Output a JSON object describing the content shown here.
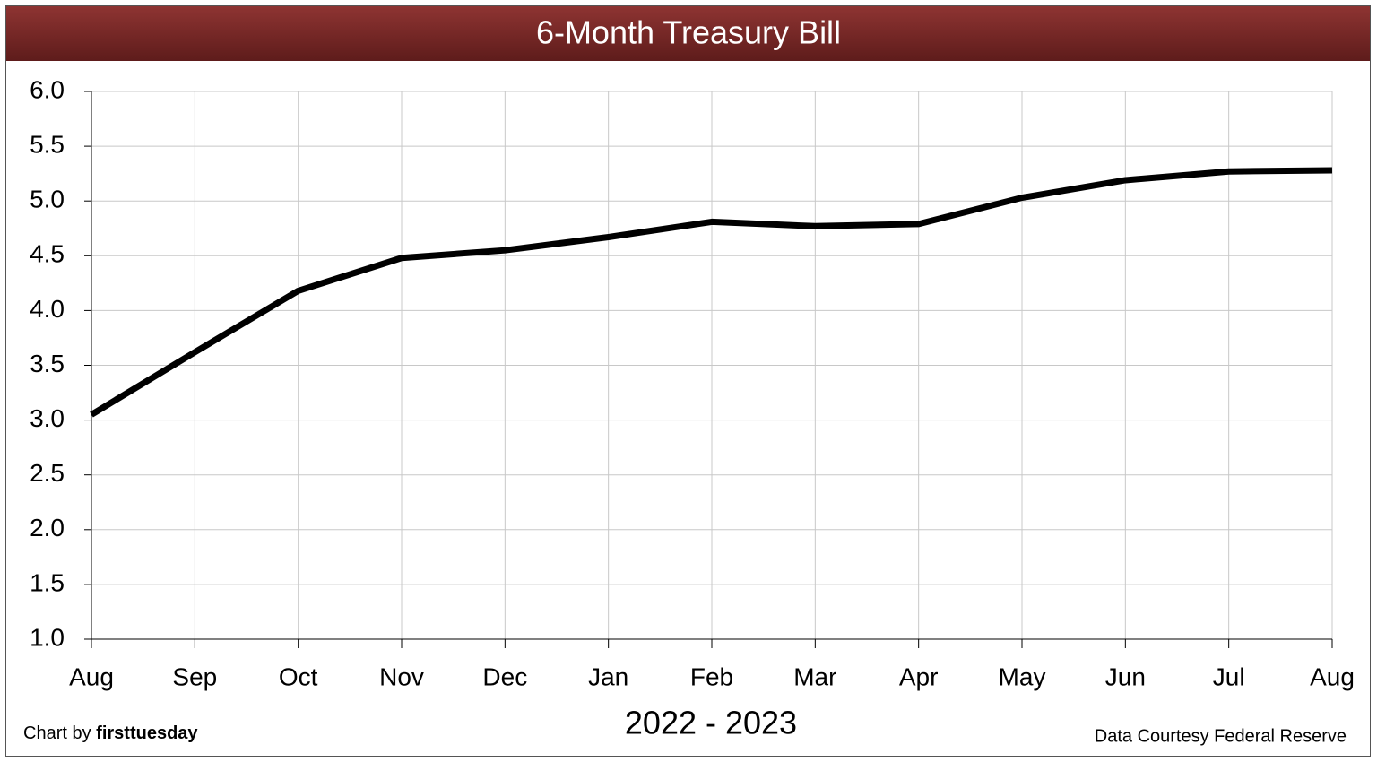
{
  "chart_data": {
    "type": "line",
    "title": "6-Month Treasury Bill",
    "categories": [
      "Aug",
      "Sep",
      "Oct",
      "Nov",
      "Dec",
      "Jan",
      "Feb",
      "Mar",
      "Apr",
      "May",
      "Jun",
      "Jul",
      "Aug"
    ],
    "values": [
      3.05,
      3.62,
      4.18,
      4.48,
      4.55,
      4.67,
      4.81,
      4.77,
      4.79,
      5.03,
      5.19,
      5.27,
      5.28
    ],
    "color": "#000000",
    "x_label": "2022 - 2023",
    "credit_prefix": "Chart by",
    "credit_name": "firsttuesday",
    "source": "Data Courtesy Federal Reserve",
    "ylim": [
      1,
      6
    ],
    "yticks": [
      {
        "value": 1,
        "label": "1.0"
      },
      1.5,
      {
        "value": 2,
        "label": "2.0"
      },
      2.5,
      {
        "value": 3,
        "label": "3.0"
      },
      3.5,
      {
        "value": 4,
        "label": "4.0"
      },
      4.5,
      {
        "value": 5,
        "label": "5.0"
      },
      5.5,
      {
        "value": 6,
        "label": "6.0"
      }
    ],
    "grid": true
  }
}
